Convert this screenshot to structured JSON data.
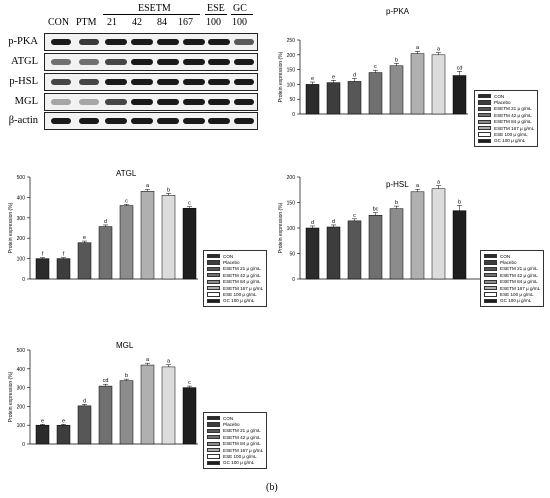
{
  "western_blot": {
    "column_labels": [
      "CON",
      "PTM",
      "21",
      "42",
      "84",
      "167",
      "100",
      "100"
    ],
    "group_labels": [
      "ESETM",
      "ESE",
      "GC"
    ],
    "row_labels": [
      "p-PKA",
      "ATGL",
      "p-HSL",
      "MGL",
      "β-actin"
    ]
  },
  "figure_label": "(b)",
  "legend_entries": [
    "CON",
    "Placebo",
    "ESETM 21 μ g/mL",
    "ESETM 42 μ g/mL",
    "ESETM 84 μ g/mL",
    "ESETM 167 μ g/mL",
    "ESE 100 μ g/mL",
    "GC 100 μ g/mL"
  ],
  "colors": {
    "bars": [
      "#2b2b2b",
      "#3d3d3d",
      "#575757",
      "#707070",
      "#8c8c8c",
      "#b0b0b0",
      "#dcdcdc",
      "#1e1e1e"
    ],
    "bars_legend": [
      "#2b2b2b",
      "#3d3d3d",
      "#575757",
      "#707070",
      "#8c8c8c",
      "#b0b0b0",
      "#ffffff",
      "#1e1e1e"
    ]
  },
  "chart_data": [
    {
      "type": "bar",
      "title": "p-PKA",
      "ylabel": "Protein expression (%)",
      "ylim": [
        0,
        250
      ],
      "yticks": [
        0,
        50,
        100,
        150,
        200,
        250
      ],
      "values": [
        100,
        106,
        110,
        140,
        163,
        204,
        200,
        130
      ],
      "errors": [
        8,
        8,
        10,
        8,
        8,
        8,
        8,
        14
      ],
      "letters": [
        "e",
        "e",
        "d",
        "c",
        "b",
        "a",
        "a",
        "cd"
      ]
    },
    {
      "type": "bar",
      "title": "ATGL",
      "ylabel": "Protein expression (%)",
      "ylim": [
        0,
        500
      ],
      "yticks": [
        0,
        100,
        200,
        300,
        400,
        500
      ],
      "values": [
        100,
        100,
        178,
        257,
        360,
        430,
        410,
        347
      ],
      "errors": [
        5,
        5,
        8,
        8,
        6,
        10,
        10,
        8
      ],
      "letters": [
        "f",
        "f",
        "e",
        "d",
        "c",
        "a",
        "b",
        "c"
      ]
    },
    {
      "type": "bar",
      "title": "p-HSL",
      "ylabel": "Protein expression (%)",
      "ylim": [
        0,
        200
      ],
      "yticks": [
        0,
        50,
        100,
        150,
        200
      ],
      "values": [
        100,
        102,
        114,
        125,
        138,
        171,
        177,
        134
      ],
      "errors": [
        4,
        4,
        4,
        5,
        5,
        5,
        6,
        10
      ],
      "letters": [
        "d",
        "d",
        "c",
        "bc",
        "b",
        "a",
        "a",
        "b"
      ]
    },
    {
      "type": "bar",
      "title": "MGL",
      "ylabel": "Protein expression (%)",
      "ylim": [
        0,
        500
      ],
      "yticks": [
        0,
        100,
        200,
        300,
        400,
        500
      ],
      "values": [
        100,
        100,
        203,
        308,
        337,
        420,
        410,
        300
      ],
      "errors": [
        5,
        5,
        8,
        10,
        8,
        10,
        12,
        8
      ],
      "letters": [
        "e",
        "e",
        "d",
        "cd",
        "b",
        "a",
        "a",
        "c"
      ]
    }
  ]
}
